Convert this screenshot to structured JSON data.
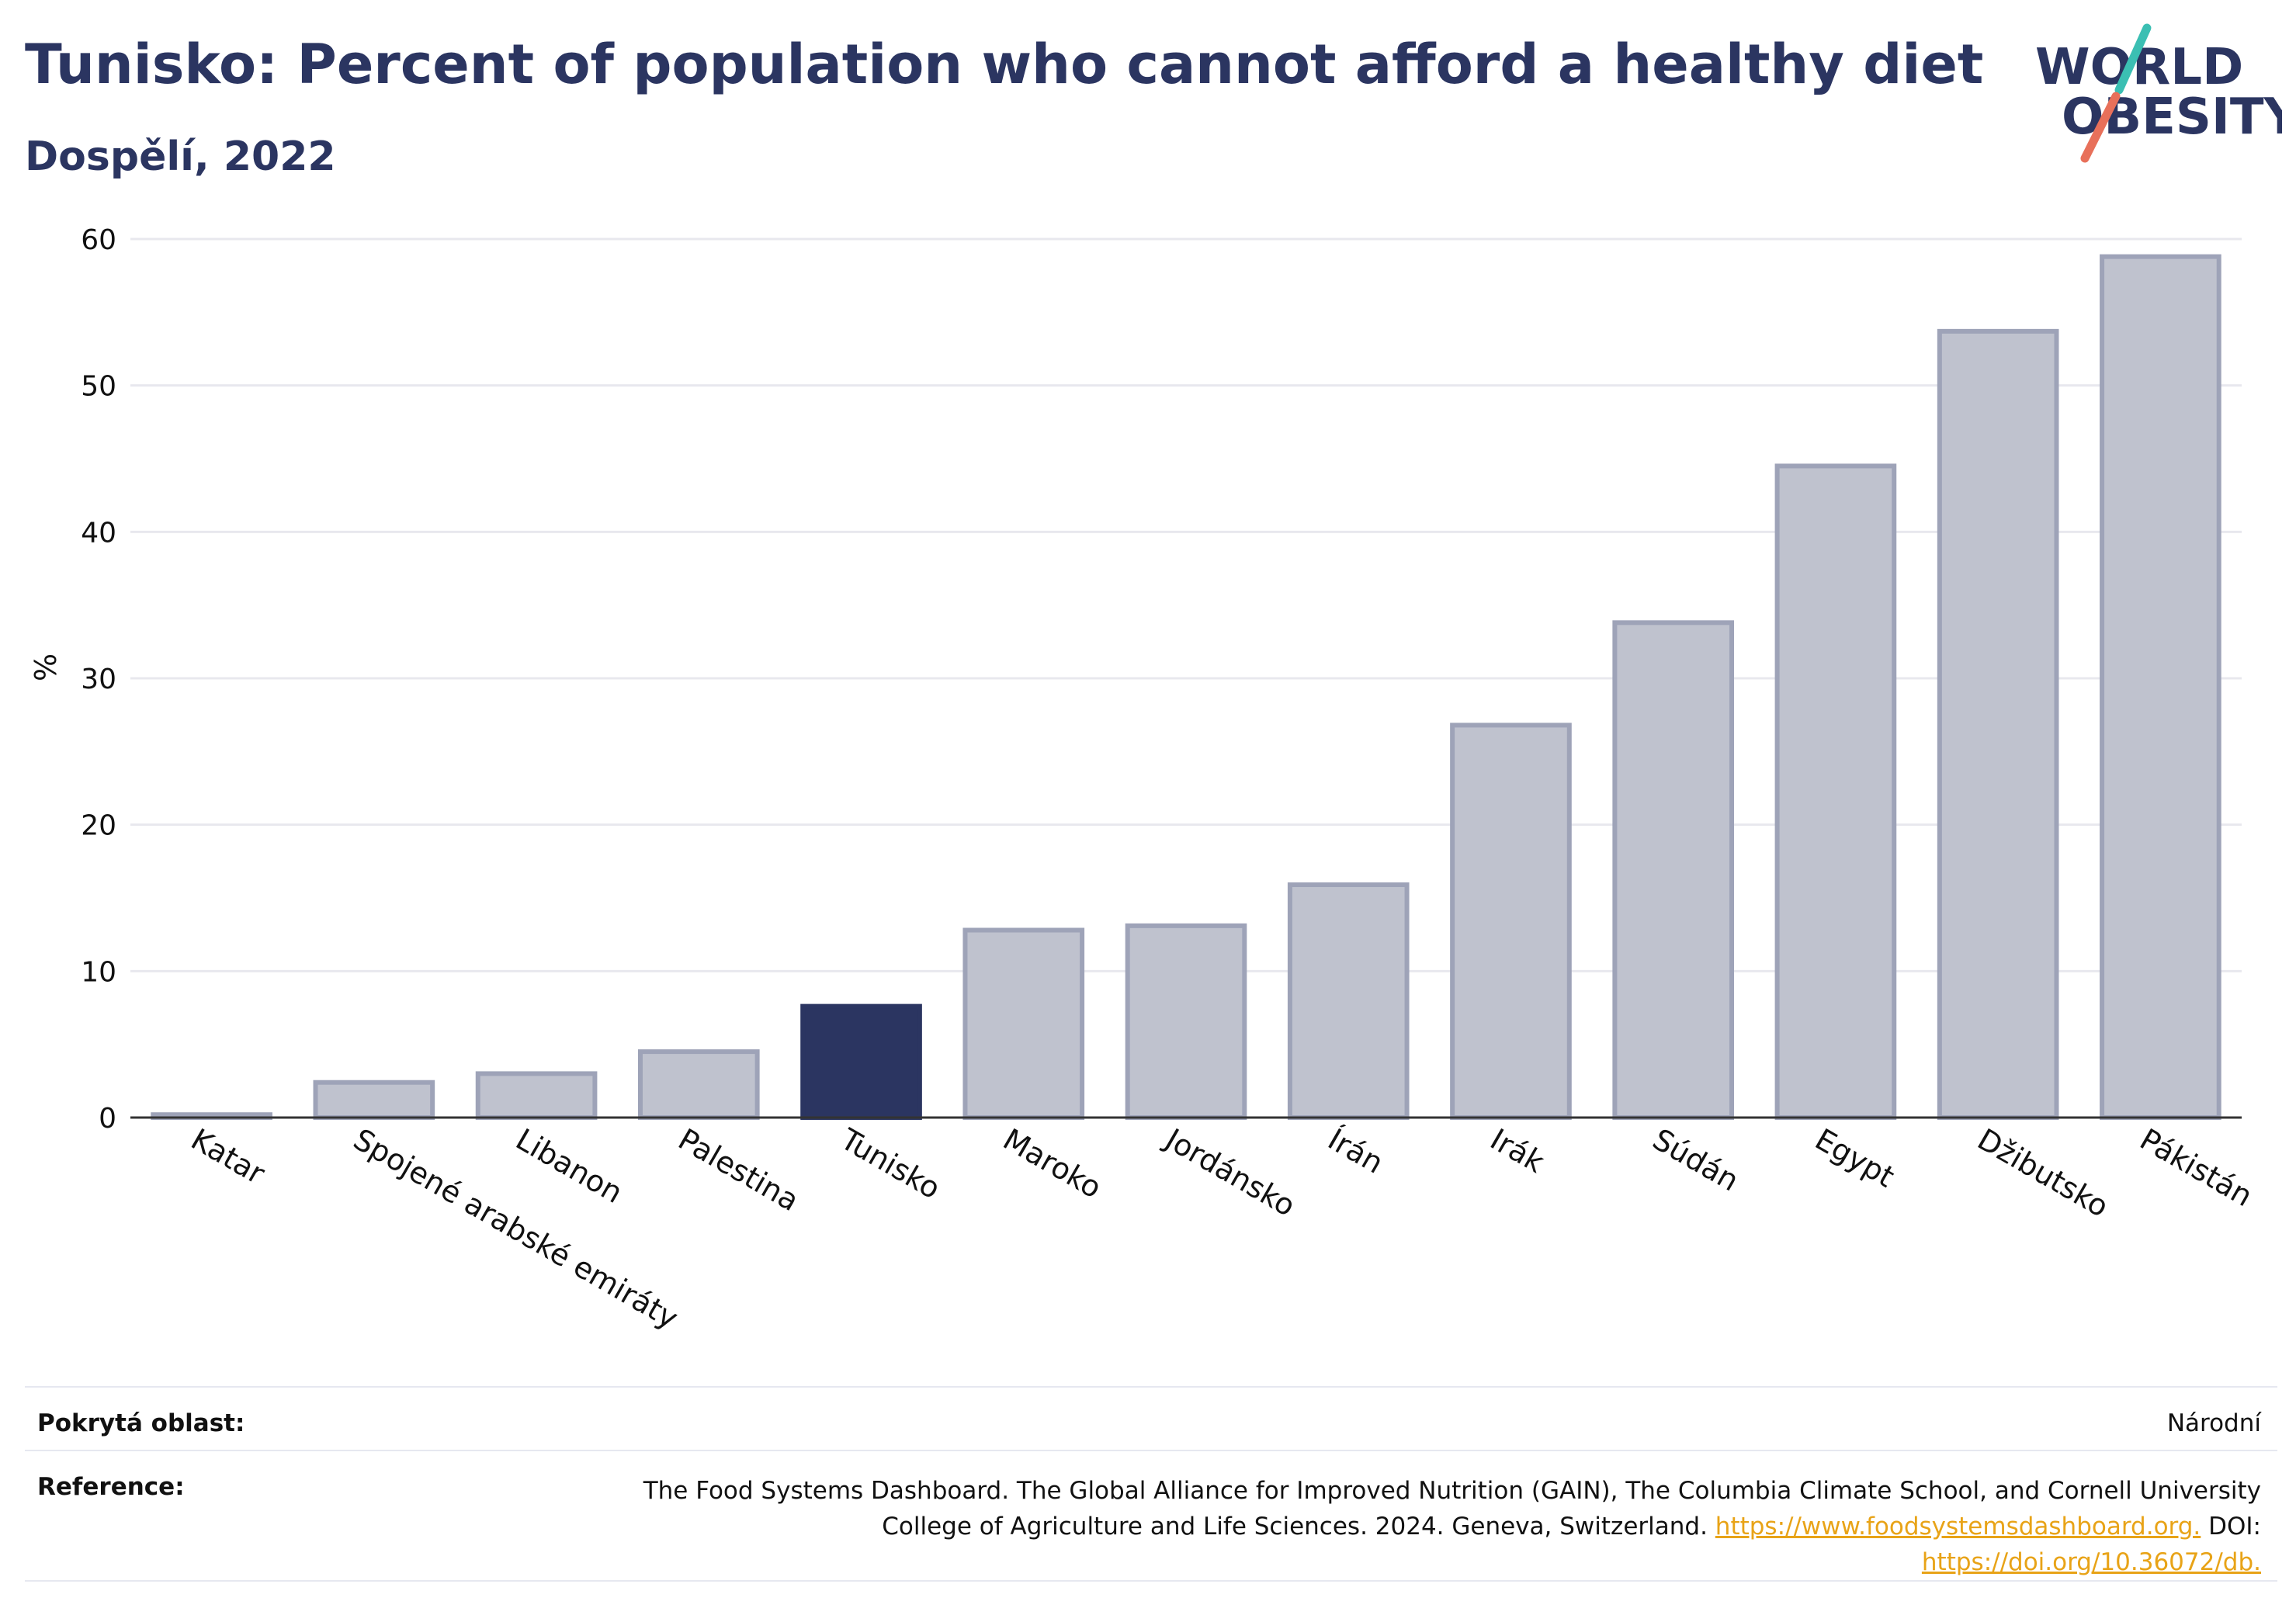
{
  "header": {
    "title": "Tunisko: Percent of population who cannot afford a healthy diet",
    "subtitle": "Dospělí, 2022"
  },
  "logo": {
    "line1": "WORLD",
    "line2": "OBESITY"
  },
  "colors": {
    "title": "#2b3561",
    "highlight_bar": "#2b3561",
    "bar_fill": "#bfc2ce",
    "bar_stroke": "#9ea3b8",
    "grid": "#e8e8ee",
    "link": "#e8a317",
    "logo_teal": "#3bbfb3",
    "logo_coral": "#e8705a"
  },
  "chart_data": {
    "type": "bar",
    "ylabel": "%",
    "xlabel": "",
    "ylim": [
      0,
      60
    ],
    "yticks": [
      0,
      10,
      20,
      30,
      40,
      50,
      60
    ],
    "grid": true,
    "highlight": "Tunisko",
    "categories": [
      "Katar",
      "Spojené arabské emiráty",
      "Libanon",
      "Palestina",
      "Tunisko",
      "Maroko",
      "Jordánsko",
      "Írán",
      "Irák",
      "Súdán",
      "Egypt",
      "Džibutsko",
      "Pákistán"
    ],
    "values": [
      0.2,
      2.4,
      3.0,
      4.5,
      7.6,
      12.8,
      13.1,
      15.9,
      26.8,
      33.8,
      44.5,
      53.7,
      58.8
    ]
  },
  "footer": {
    "coverage_label": "Pokrytá oblast:",
    "coverage_value": "Národní",
    "reference_label": "Reference:",
    "reference_text": "The Food Systems Dashboard. The Global Alliance for Improved Nutrition (GAIN), The Columbia Climate School, and Cornell University College of Agriculture and Life Sciences. 2024. Geneva, Switzerland.",
    "reference_link1": "https://www.foodsystemsdashboard.org.",
    "reference_doi_label": "DOI:",
    "reference_link2": "https://doi.org/10.36072/db."
  }
}
